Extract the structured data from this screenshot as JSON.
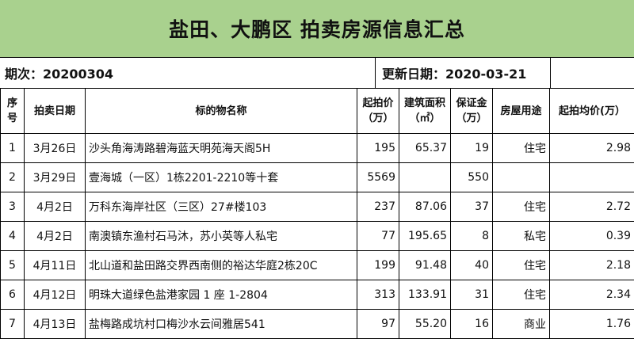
{
  "title": "盐田、大鹏区 拍卖房源信息汇总",
  "meta": {
    "period_label": "期次：20200304",
    "updated_label": "更新日期：2020-03-21"
  },
  "columns": [
    {
      "line1": "序",
      "line2": "号"
    },
    {
      "line1": "拍卖日期",
      "line2": ""
    },
    {
      "line1": "标的物名称",
      "line2": ""
    },
    {
      "line1": "起拍价",
      "line2": "（万）"
    },
    {
      "line1": "建筑面积",
      "line2": "（㎡）"
    },
    {
      "line1": "保证金",
      "line2": "（万）"
    },
    {
      "line1": "房屋用途",
      "line2": ""
    },
    {
      "line1": "起拍均价(万）",
      "line2": ""
    }
  ],
  "rows": [
    {
      "no": "1",
      "date": "3月26日",
      "name": "沙头角海涛路碧海蓝天明苑海天阁5H",
      "price": "195",
      "area": "65.37",
      "deposit": "19",
      "usage": "住宅",
      "avg": "2.98"
    },
    {
      "no": "2",
      "date": "3月29日",
      "name": "壹海城（一区）1栋2201-2210等十套",
      "price": "5569",
      "area": "",
      "deposit": "550",
      "usage": "",
      "avg": ""
    },
    {
      "no": "3",
      "date": "4月2日",
      "name": "万科东海岸社区（三区）27#楼103",
      "price": "237",
      "area": "87.06",
      "deposit": "37",
      "usage": "住宅",
      "avg": "2.72"
    },
    {
      "no": "4",
      "date": "4月2日",
      "name": "南澳镇东渔村石马沐，苏小英等人私宅",
      "price": "77",
      "area": "195.65",
      "deposit": "8",
      "usage": "私宅",
      "avg": "0.39"
    },
    {
      "no": "5",
      "date": "4月11日",
      "name": "北山道和盐田路交界西南侧的裕达华庭2栋20C",
      "price": "199",
      "area": "91.48",
      "deposit": "40",
      "usage": "住宅",
      "avg": "2.18"
    },
    {
      "no": "6",
      "date": "4月12日",
      "name": "明珠大道绿色盐港家园 1 座 1-2804",
      "price": "313",
      "area": "133.91",
      "deposit": "31",
      "usage": "住宅",
      "avg": "2.34"
    },
    {
      "no": "7",
      "date": "4月13日",
      "name": "盐梅路成坑村口梅沙水云间雅居541",
      "price": "97",
      "area": "55.20",
      "deposit": "16",
      "usage": "商业",
      "avg": "1.76"
    }
  ]
}
